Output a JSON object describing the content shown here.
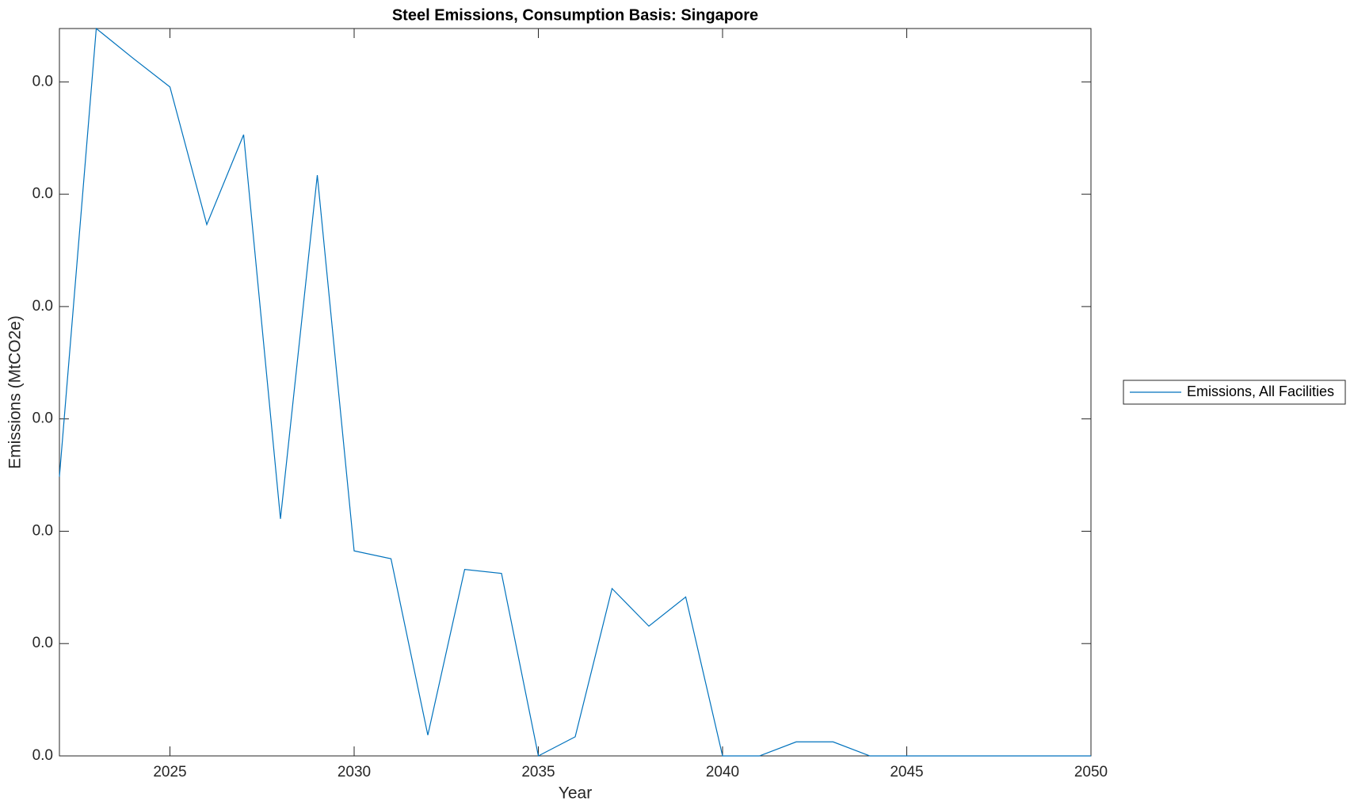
{
  "chart_data": {
    "type": "line",
    "title": "Steel Emissions, Consumption Basis: Singapore",
    "x_label": "Year",
    "y_label": "Emissions (MtCO2e)",
    "x": [
      2022,
      2023,
      2024,
      2025,
      2026,
      2027,
      2028,
      2029,
      2030,
      2031,
      2032,
      2033,
      2034,
      2035,
      2036,
      2037,
      2038,
      2039,
      2040,
      2041,
      2042,
      2043,
      2044,
      2045,
      2046,
      2047,
      2048,
      2049,
      2050
    ],
    "series": [
      {
        "name": "Emissions, All Facilities",
        "color": "#0072bd",
        "values": [
          0.00497,
          0.01295,
          0.01242,
          0.01191,
          0.00946,
          0.01106,
          0.00422,
          0.01034,
          0.00365,
          0.00351,
          0.00037,
          0.00332,
          0.00325,
          0,
          0.00034,
          0.00298,
          0.00231,
          0.00283,
          0,
          0,
          0.00025,
          0.00025,
          0,
          0,
          0,
          0,
          0,
          0,
          0
        ]
      }
    ],
    "xlim": [
      2022,
      2050
    ],
    "xticks": [
      2025,
      2030,
      2035,
      2040,
      2045,
      2050
    ],
    "ylim": [
      0,
      0.01295
    ],
    "yticks": [
      {
        "value": 0,
        "label": "0.0"
      },
      {
        "value": 0.002,
        "label": "0.0"
      },
      {
        "value": 0.004,
        "label": "0.0"
      },
      {
        "value": 0.006,
        "label": "0.0"
      },
      {
        "value": 0.008,
        "label": "0.0"
      },
      {
        "value": 0.01,
        "label": "0.0"
      },
      {
        "value": 0.012,
        "label": "0.0"
      }
    ],
    "grid": false,
    "legend": "outside-right"
  }
}
